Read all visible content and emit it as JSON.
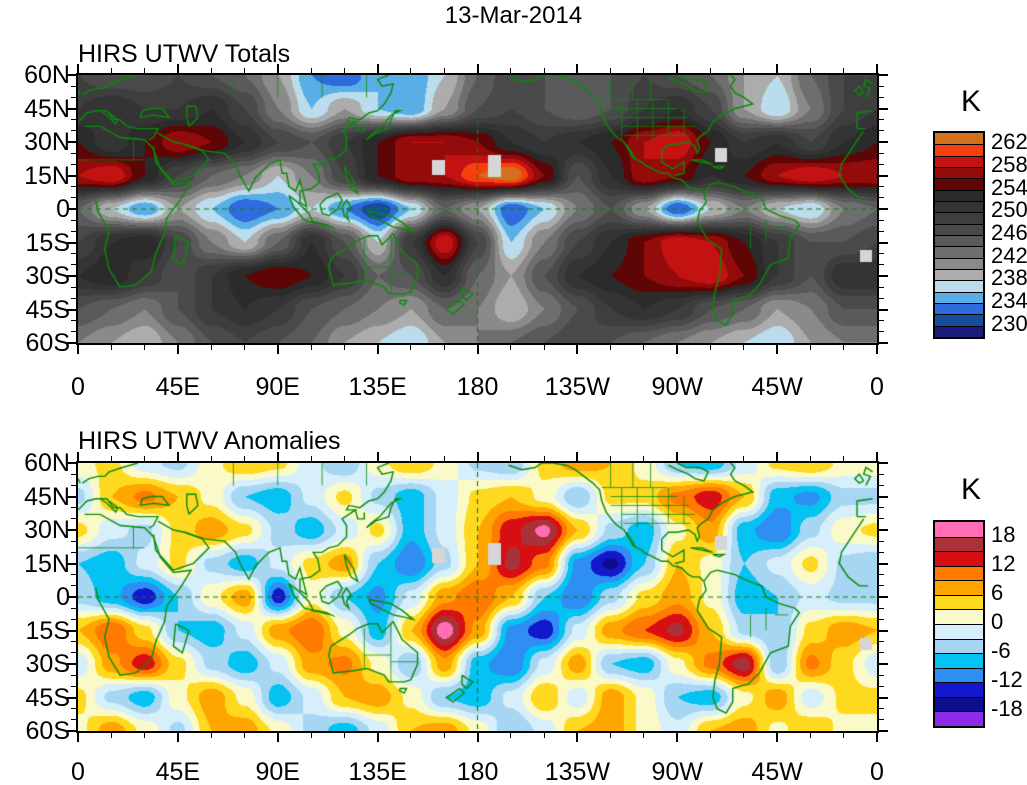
{
  "title": "13-Mar-2014",
  "panels": [
    {
      "title": "HIRS UTWV Totals",
      "colorbar_title": "K"
    },
    {
      "title": "HIRS UTWV Anomalies",
      "colorbar_title": "K"
    }
  ],
  "axes": {
    "lon_labels": [
      "0",
      "45E",
      "90E",
      "135E",
      "180",
      "135W",
      "90W",
      "45W",
      "0"
    ],
    "lat_labels": [
      "60N",
      "45N",
      "30N",
      "15N",
      "0",
      "15S",
      "30S",
      "45S",
      "60S"
    ]
  },
  "chart_data": [
    {
      "type": "heatmap",
      "name": "HIRS UTWV Totals",
      "units": "K",
      "projection": "equirectangular",
      "lon_start": 0,
      "lon_end": 360,
      "lat_start": 60,
      "lat_end": -60,
      "grid_step_deg": 15,
      "levels_k": {
        "max": 264,
        "step": 2
      },
      "colorbar_labels": [
        "262",
        "258",
        "254",
        "250",
        "246",
        "242",
        "238",
        "234",
        "230"
      ],
      "colors": [
        "#D2701E",
        "#F5400D",
        "#C41212",
        "#930B0B",
        "#5E0505",
        "#2B2B2B",
        "#343434",
        "#3E3E3E",
        "#4A4A4A",
        "#5A5A5A",
        "#6E6E6E",
        "#8A8A8A",
        "#ACACAC",
        "#BADCEC",
        "#5AAEE6",
        "#2F6BDD",
        "#174E9C",
        "#1B1B7D"
      ],
      "values": [
        [
          248,
          246,
          246,
          248,
          246,
          244,
          240,
          234,
          232,
          236,
          234,
          238,
          244,
          248,
          246,
          244,
          246,
          248,
          246,
          244,
          240,
          238,
          244,
          248
        ],
        [
          250,
          252,
          250,
          250,
          252,
          248,
          242,
          236,
          240,
          236,
          234,
          240,
          246,
          248,
          246,
          244,
          246,
          250,
          252,
          248,
          240,
          236,
          242,
          248
        ],
        [
          254,
          250,
          254,
          258,
          256,
          252,
          248,
          246,
          250,
          254,
          258,
          258,
          256,
          252,
          250,
          252,
          254,
          258,
          260,
          254,
          250,
          252,
          248,
          252
        ],
        [
          258,
          260,
          254,
          248,
          244,
          242,
          238,
          242,
          248,
          254,
          258,
          258,
          262,
          264,
          256,
          246,
          252,
          258,
          256,
          252,
          254,
          258,
          260,
          258
        ],
        [
          244,
          238,
          234,
          240,
          236,
          232,
          234,
          238,
          234,
          230,
          236,
          244,
          240,
          232,
          236,
          242,
          246,
          240,
          232,
          238,
          242,
          238,
          236,
          242
        ],
        [
          248,
          252,
          254,
          248,
          242,
          238,
          244,
          252,
          246,
          238,
          250,
          260,
          248,
          236,
          242,
          248,
          252,
          256,
          260,
          258,
          254,
          250,
          246,
          246
        ],
        [
          252,
          254,
          250,
          246,
          250,
          254,
          256,
          254,
          250,
          244,
          246,
          252,
          244,
          240,
          246,
          252,
          254,
          256,
          258,
          260,
          256,
          250,
          246,
          252
        ],
        [
          246,
          244,
          242,
          246,
          250,
          252,
          250,
          246,
          244,
          242,
          240,
          244,
          242,
          238,
          242,
          246,
          250,
          252,
          250,
          246,
          244,
          240,
          242,
          246
        ],
        [
          242,
          240,
          238,
          242,
          246,
          248,
          246,
          244,
          240,
          238,
          236,
          240,
          242,
          244,
          246,
          248,
          246,
          244,
          242,
          240,
          238,
          236,
          240,
          242
        ]
      ]
    },
    {
      "type": "heatmap",
      "name": "HIRS UTWV Anomalies",
      "units": "K",
      "projection": "equirectangular",
      "lon_start": 0,
      "lon_end": 360,
      "lat_start": 60,
      "lat_end": -60,
      "grid_step_deg": 15,
      "levels_k": {
        "max": 21,
        "step": 3
      },
      "colorbar_labels": [
        "18",
        "12",
        "6",
        "0",
        "-6",
        "-12",
        "-18"
      ],
      "colors": [
        "#FF6EB4",
        "#A83238",
        "#D80F12",
        "#FF7A00",
        "#FFA500",
        "#FFD920",
        "#FAFAC8",
        "#D6EFFA",
        "#A6D6F2",
        "#04C2F2",
        "#2E8EF2",
        "#1418CC",
        "#0E0E8C",
        "#8C2BE8"
      ],
      "values": [
        [
          2,
          4,
          -2,
          -4,
          2,
          6,
          4,
          -2,
          -6,
          2,
          6,
          2,
          -4,
          -6,
          4,
          8,
          6,
          2,
          -6,
          -8,
          -2,
          4,
          6,
          2
        ],
        [
          -4,
          6,
          10,
          6,
          2,
          -6,
          -8,
          -2,
          4,
          -4,
          -8,
          -2,
          4,
          6,
          2,
          -6,
          4,
          4,
          10,
          14,
          6,
          -8,
          -10,
          -4
        ],
        [
          4,
          -2,
          -4,
          4,
          8,
          4,
          -4,
          -8,
          -2,
          4,
          -8,
          -2,
          6,
          14,
          19,
          6,
          -4,
          -8,
          2,
          8,
          -8,
          -12,
          -4,
          2
        ],
        [
          -6,
          -8,
          -2,
          4,
          -4,
          -8,
          -2,
          4,
          8,
          -6,
          -12,
          -4,
          6,
          16,
          10,
          -10,
          -16,
          -6,
          6,
          2,
          -6,
          -2,
          4,
          -4
        ],
        [
          -4,
          -8,
          -14,
          -6,
          2,
          8,
          -14,
          2,
          -6,
          -10,
          -2,
          8,
          12,
          6,
          -6,
          -12,
          -4,
          4,
          8,
          2,
          -8,
          -6,
          -2,
          -4
        ],
        [
          6,
          12,
          4,
          -6,
          -8,
          -2,
          8,
          12,
          2,
          -8,
          6,
          20,
          8,
          -10,
          -14,
          -2,
          8,
          12,
          16,
          6,
          -4,
          -6,
          4,
          8
        ],
        [
          -2,
          8,
          14,
          4,
          -4,
          -8,
          -2,
          8,
          10,
          2,
          -6,
          8,
          -8,
          -12,
          -2,
          8,
          -6,
          -8,
          2,
          10,
          17,
          -6,
          10,
          4
        ],
        [
          4,
          -4,
          -8,
          2,
          8,
          2,
          -8,
          -2,
          6,
          8,
          2,
          -6,
          -8,
          -2,
          6,
          -2,
          8,
          2,
          -6,
          -8,
          2,
          8,
          -2,
          4
        ],
        [
          2,
          8,
          2,
          -4,
          6,
          8,
          2,
          -4,
          -8,
          -2,
          6,
          8,
          2,
          -6,
          -2,
          6,
          8,
          2,
          -2,
          6,
          8,
          2,
          6,
          2
        ]
      ]
    }
  ],
  "map_geometry": {
    "coastline_color": "#0B8A0B",
    "dashed_line_color": "#157A15",
    "dashed_lon": 180,
    "dashed_lat": 0,
    "missing_color": "#D6D6D6",
    "missing_data_squares": [
      [
        354,
        85,
        13,
        15
      ],
      [
        410,
        80,
        13,
        22
      ],
      [
        637,
        73,
        12,
        14
      ],
      [
        782,
        175,
        12,
        12
      ]
    ],
    "coastlines": [
      [
        -6,
        35,
        3,
        37,
        10,
        37,
        19,
        32,
        30,
        31,
        34,
        27,
        37,
        18,
        43,
        11,
        51,
        12,
        46,
        4,
        40,
        -4,
        39,
        -11,
        35,
        -20,
        33,
        -28,
        26,
        -34,
        19,
        -35,
        14,
        -27,
        12,
        -18,
        14,
        -10,
        9,
        -1,
        8,
        4,
        -4,
        5,
        -8,
        5,
        -13,
        9,
        -17,
        15,
        -16,
        20,
        -10,
        29,
        -6,
        35
      ],
      [
        44,
        -12,
        50,
        -15,
        47,
        -25,
        43,
        -22,
        44,
        -12
      ],
      [
        34,
        28,
        35,
        21,
        43,
        12,
        52,
        15,
        59,
        22,
        56,
        26,
        48,
        29,
        43,
        30,
        36,
        34
      ],
      [
        48,
        29,
        57,
        26,
        66,
        25,
        71,
        20,
        73,
        15,
        77,
        8,
        80,
        14,
        86,
        20,
        91,
        22,
        92,
        16,
        94,
        16,
        95,
        10,
        98,
        8,
        100,
        13,
        103,
        1,
        100,
        3,
        100,
        8,
        105,
        9,
        109,
        12,
        108,
        17,
        106,
        20,
        110,
        20,
        113,
        22,
        117,
        23,
        121,
        27,
        121,
        32,
        119,
        35,
        122,
        37,
        125,
        39,
        121,
        39,
        122,
        41,
        127,
        40,
        131,
        43,
        135,
        44,
        138,
        47,
        141,
        52,
        142,
        56,
        137,
        55,
        135,
        58,
        140,
        60
      ],
      [
        -9,
        36,
        -9,
        43,
        -2,
        44,
        0,
        46,
        -2,
        48,
        2,
        51,
        5,
        53,
        9,
        54,
        12,
        54,
        14,
        56,
        20,
        58,
        27,
        60
      ],
      [
        -9,
        36,
        -5,
        36,
        0,
        39,
        4,
        43,
        8,
        44,
        13,
        44,
        16,
        40,
        19,
        40,
        22,
        37,
        27,
        36,
        31,
        36,
        36,
        36,
        34,
        32,
        32,
        31
      ],
      [
        10,
        44,
        13,
        42,
        17,
        38,
        18,
        40,
        14,
        43
      ],
      [
        28,
        41,
        34,
        42,
        41,
        41,
        38,
        45,
        33,
        45,
        29,
        44,
        28,
        41
      ],
      [
        50,
        37,
        54,
        41,
        53,
        46,
        49,
        46,
        49,
        41,
        50,
        37
      ],
      [
        -5,
        50,
        1,
        51,
        0,
        53,
        -2,
        56,
        -5,
        58,
        -6,
        55,
        -3,
        54,
        -5,
        50
      ],
      [
        -6,
        52,
        -8,
        55,
        -10,
        53,
        -8,
        51,
        -6,
        52
      ],
      [
        130,
        31,
        134,
        34,
        137,
        35,
        140,
        36,
        141,
        40,
        143,
        44,
        145,
        44,
        141,
        42,
        136,
        36,
        132,
        33,
        130,
        31
      ],
      [
        125,
        39,
        126,
        35,
        129,
        35,
        129,
        38
      ],
      [
        95,
        6,
        99,
        3,
        104,
        -2,
        106,
        -6,
        102,
        -5,
        97,
        1,
        95,
        6
      ],
      [
        105,
        -6,
        110,
        -7,
        114,
        -8,
        112,
        -7,
        107,
        -6,
        105,
        -6
      ],
      [
        109,
        2,
        112,
        5,
        117,
        7,
        119,
        4,
        117,
        0,
        113,
        -3,
        110,
        -2,
        109,
        2
      ],
      [
        119,
        1,
        121,
        4,
        123,
        1,
        121,
        -2,
        122,
        -5,
        120,
        -3,
        119,
        1
      ],
      [
        131,
        -1,
        136,
        -2,
        141,
        -3,
        146,
        -6,
        151,
        -10,
        147,
        -9,
        142,
        -8,
        136,
        -5,
        132,
        -3,
        131,
        -1
      ],
      [
        120,
        19,
        122,
        16,
        124,
        13,
        126,
        7,
        123,
        9,
        121,
        14,
        120,
        19
      ],
      [
        114,
        -22,
        113,
        -26,
        115,
        -34,
        124,
        -33,
        130,
        -32,
        138,
        -35,
        140,
        -38,
        147,
        -38,
        150,
        -37,
        153,
        -30,
        153,
        -25,
        146,
        -19,
        142,
        -11,
        137,
        -16,
        135,
        -12,
        131,
        -12,
        126,
        -14,
        122,
        -17,
        114,
        -22
      ],
      [
        145,
        -41,
        148,
        -41,
        147,
        -43,
        145,
        -42,
        145,
        -41
      ],
      [
        173,
        -35,
        176,
        -37,
        178,
        -38,
        175,
        -41,
        173,
        -39,
        173,
        -35
      ],
      [
        172,
        -41,
        174,
        -43,
        169,
        -47,
        166,
        -45,
        172,
        -41
      ],
      [
        -166,
        59,
        -160,
        57,
        -154,
        58,
        -151,
        60
      ],
      [
        -151,
        60,
        -146,
        60,
        -140,
        59,
        -136,
        57,
        -132,
        54,
        -128,
        51,
        -125,
        48,
        -124,
        43,
        -122,
        38,
        -119,
        34,
        -117,
        32,
        -114,
        30,
        -111,
        25,
        -110,
        23,
        -106,
        21,
        -105,
        20,
        -97,
        16,
        -94,
        16,
        -92,
        14,
        -88,
        13,
        -85,
        10,
        -83,
        9,
        -80,
        9,
        -78,
        7
      ],
      [
        -113,
        29,
        -111,
        26,
        -109,
        23
      ],
      [
        -97,
        21,
        -97,
        26,
        -94,
        29,
        -90,
        29,
        -85,
        30,
        -82,
        28,
        -81,
        25,
        -80,
        27,
        -81,
        31,
        -79,
        33,
        -76,
        35,
        -74,
        39,
        -70,
        42,
        -66,
        44,
        -64,
        45,
        -60,
        46,
        -56,
        47,
        -60,
        50,
        -64,
        52,
        -66,
        55,
        -64,
        58,
        -66,
        60
      ],
      [
        -97,
        21,
        -92,
        18,
        -87,
        21,
        -87,
        16,
        -91,
        15
      ],
      [
        -94,
        59,
        -90,
        57,
        -85,
        55,
        -82,
        53,
        -78,
        52,
        -76,
        56,
        -80,
        58,
        -86,
        58,
        -90,
        60
      ],
      [
        -84,
        22,
        -79,
        22,
        -74,
        20,
        -79,
        21,
        -84,
        22
      ],
      [
        -74,
        19,
        -69,
        19,
        -71,
        18,
        -74,
        19
      ],
      [
        -78,
        7,
        -75,
        11,
        -72,
        12,
        -68,
        11,
        -64,
        10,
        -60,
        8,
        -55,
        6,
        -52,
        5,
        -50,
        0,
        -44,
        -3,
        -37,
        -5,
        -35,
        -7,
        -39,
        -13,
        -40,
        -22,
        -48,
        -25,
        -53,
        -34,
        -58,
        -39,
        -62,
        -40,
        -65,
        -41,
        -65,
        -47,
        -68,
        -52,
        -72,
        -50,
        -74,
        -45,
        -73,
        -37,
        -71,
        -30,
        -70,
        -18,
        -76,
        -14,
        -81,
        -6,
        -80,
        -1,
        -77,
        3,
        -78,
        7
      ]
    ],
    "admin_lines": [
      [
        -124,
        49,
        -95,
        49
      ],
      [
        -120,
        45,
        -90,
        45
      ],
      [
        -120,
        41,
        -85,
        41
      ],
      [
        -115,
        37,
        -82,
        37
      ],
      [
        -114,
        33,
        -84,
        33
      ],
      [
        -115,
        31,
        -115,
        49
      ],
      [
        -108,
        31,
        -108,
        49
      ],
      [
        -101,
        31,
        -101,
        49
      ],
      [
        -94,
        33,
        -94,
        49
      ],
      [
        -87,
        33,
        -87,
        45
      ],
      [
        -120,
        49,
        -120,
        60
      ],
      [
        -110,
        49,
        -110,
        60
      ],
      [
        -102,
        49,
        -102,
        60
      ],
      [
        70,
        50,
        70,
        60
      ],
      [
        90,
        50,
        90,
        60
      ],
      [
        110,
        50,
        110,
        60
      ],
      [
        130,
        50,
        130,
        60
      ],
      [
        129,
        -14,
        129,
        -32
      ],
      [
        141,
        -12,
        141,
        -38
      ],
      [
        129,
        -26,
        141,
        -26
      ],
      [
        141,
        -29,
        153,
        -29
      ],
      [
        -57,
        -8,
        -57,
        -18
      ],
      [
        -50,
        -5,
        -50,
        -15
      ],
      [
        -46,
        -8,
        -40,
        -8
      ],
      [
        0,
        22,
        30,
        22
      ],
      [
        -13,
        22,
        0,
        22
      ],
      [
        25,
        22,
        25,
        32
      ]
    ]
  }
}
